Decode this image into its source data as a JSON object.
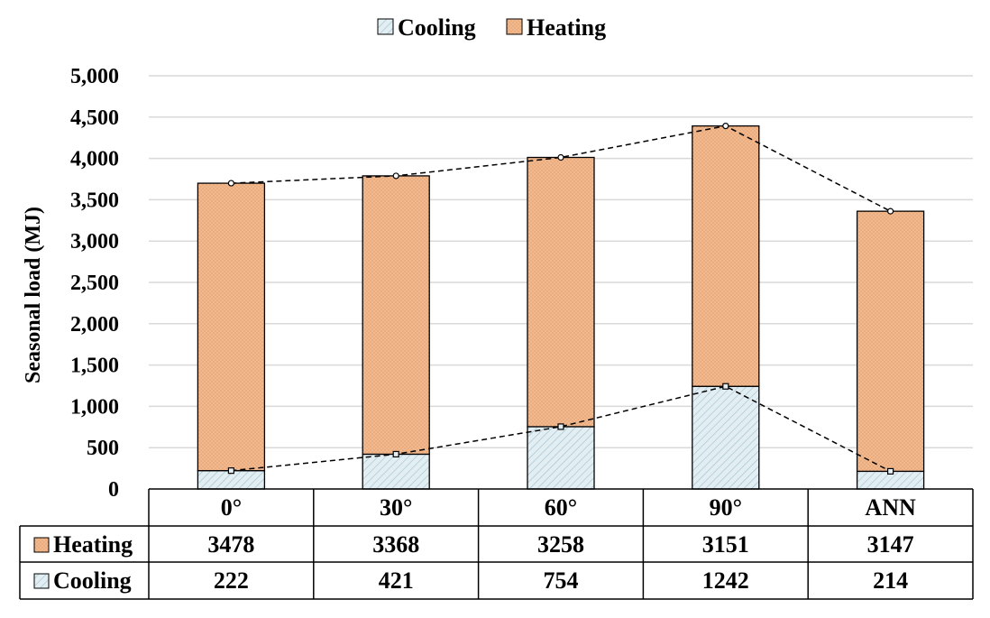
{
  "chart_data": {
    "type": "bar",
    "stacked": true,
    "categories": [
      "0°",
      "30°",
      "60°",
      "90°",
      "ANN"
    ],
    "series": [
      {
        "name": "Cooling",
        "values": [
          222,
          421,
          754,
          1242,
          214
        ]
      },
      {
        "name": "Heating",
        "values": [
          3478,
          3368,
          3258,
          3151,
          3147
        ]
      }
    ],
    "ylabel": "Seasonal load (MJ)",
    "xlabel": "",
    "ylim": [
      0,
      5000
    ],
    "yticks": [
      0,
      500,
      1000,
      1500,
      2000,
      2500,
      3000,
      3500,
      4000,
      4500,
      5000
    ],
    "ytick_labels": [
      "0",
      "500",
      "1,000",
      "1,500",
      "2,000",
      "2,500",
      "3,000",
      "3,500",
      "4,000",
      "4,500",
      "5,000"
    ],
    "grid": true,
    "legend_placement": "top-center",
    "data_table": true,
    "trend_lines": "dashed lines connecting cooling tops and total tops",
    "colors": {
      "Cooling": "#dde9ef",
      "Heating": "#f2b98e"
    }
  }
}
